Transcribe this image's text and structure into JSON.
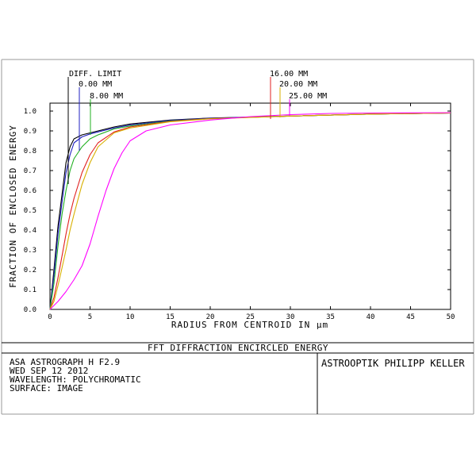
{
  "chart_data": {
    "type": "line",
    "title": "FFT DIFFRACTION ENCIRCLED ENERGY",
    "xlabel": "RADIUS FROM CENTROID IN µm",
    "ylabel": "FRACTION OF ENCLOSED ENERGY",
    "xlim": [
      0,
      50
    ],
    "ylim": [
      0,
      1.0
    ],
    "x_ticks": [
      "0",
      "5",
      "10",
      "15",
      "20",
      "25",
      "30",
      "35",
      "40",
      "45",
      "50"
    ],
    "y_ticks": [
      "0.0",
      "0.1",
      "0.2",
      "0.3",
      "0.4",
      "0.5",
      "0.6",
      "0.7",
      "0.8",
      "0.9",
      "1.0"
    ],
    "grid": false,
    "legend_labels": [
      "DIFF. LIMIT",
      "0.00 MM",
      "8.00 MM",
      "16.00 MM",
      "20.00 MM",
      "25.00 MM"
    ],
    "series": [
      {
        "name": "DIFF. LIMIT",
        "color": "#000000",
        "x": [
          0,
          0.5,
          1,
          1.5,
          2,
          2.5,
          3,
          4,
          5,
          6,
          8,
          10,
          15,
          20,
          30,
          40,
          50
        ],
        "y": [
          0,
          0.2,
          0.42,
          0.58,
          0.74,
          0.82,
          0.86,
          0.88,
          0.89,
          0.9,
          0.92,
          0.935,
          0.955,
          0.965,
          0.975,
          0.985,
          0.99
        ]
      },
      {
        "name": "0.00 MM",
        "color": "#2020c0",
        "x": [
          0,
          0.5,
          1,
          1.5,
          2,
          2.5,
          3,
          4,
          5,
          6,
          8,
          10,
          15,
          20,
          30,
          40,
          50
        ],
        "y": [
          0,
          0.17,
          0.38,
          0.54,
          0.69,
          0.78,
          0.84,
          0.87,
          0.885,
          0.895,
          0.915,
          0.93,
          0.953,
          0.964,
          0.975,
          0.985,
          0.99
        ]
      },
      {
        "name": "8.00 MM",
        "color": "#20b020",
        "x": [
          0,
          0.5,
          1,
          1.5,
          2,
          2.5,
          3,
          4,
          5,
          6,
          8,
          10,
          15,
          20,
          30,
          40,
          50
        ],
        "y": [
          0,
          0.13,
          0.32,
          0.48,
          0.6,
          0.7,
          0.76,
          0.82,
          0.86,
          0.88,
          0.91,
          0.925,
          0.95,
          0.962,
          0.975,
          0.985,
          0.99
        ]
      },
      {
        "name": "16.00 MM",
        "color": "#e02020",
        "x": [
          0,
          0.5,
          1,
          1.5,
          2,
          2.5,
          3,
          4,
          5,
          6,
          8,
          10,
          15,
          20,
          30,
          40,
          50
        ],
        "y": [
          0,
          0.06,
          0.16,
          0.27,
          0.38,
          0.48,
          0.56,
          0.69,
          0.78,
          0.84,
          0.895,
          0.92,
          0.948,
          0.962,
          0.975,
          0.985,
          0.99
        ]
      },
      {
        "name": "20.00 MM",
        "color": "#d8b000",
        "x": [
          0,
          0.5,
          1,
          1.5,
          2,
          2.5,
          3,
          4,
          5,
          6,
          8,
          10,
          15,
          20,
          30,
          40,
          50
        ],
        "y": [
          0,
          0.04,
          0.12,
          0.21,
          0.3,
          0.4,
          0.48,
          0.63,
          0.74,
          0.82,
          0.89,
          0.915,
          0.946,
          0.961,
          0.975,
          0.985,
          0.99
        ]
      },
      {
        "name": "25.00 MM",
        "color": "#ff00ff",
        "x": [
          0,
          1,
          2,
          3,
          4,
          5,
          6,
          7,
          8,
          9,
          10,
          12,
          15,
          20,
          25,
          30,
          35,
          40,
          50
        ],
        "y": [
          0,
          0.04,
          0.09,
          0.15,
          0.22,
          0.33,
          0.47,
          0.6,
          0.71,
          0.79,
          0.85,
          0.9,
          0.93,
          0.955,
          0.972,
          0.982,
          0.988,
          0.99,
          0.992
        ]
      }
    ]
  },
  "info": {
    "title": "FFT DIFFRACTION ENCIRCLED ENERGY",
    "lines": [
      "ASA ASTROGRAPH H F2.9",
      "WED SEP 12 2012",
      "WAVELENGTH: POLYCHROMATIC",
      "SURFACE: IMAGE"
    ],
    "company": "ASTROOPTIK PHILIPP KELLER"
  }
}
